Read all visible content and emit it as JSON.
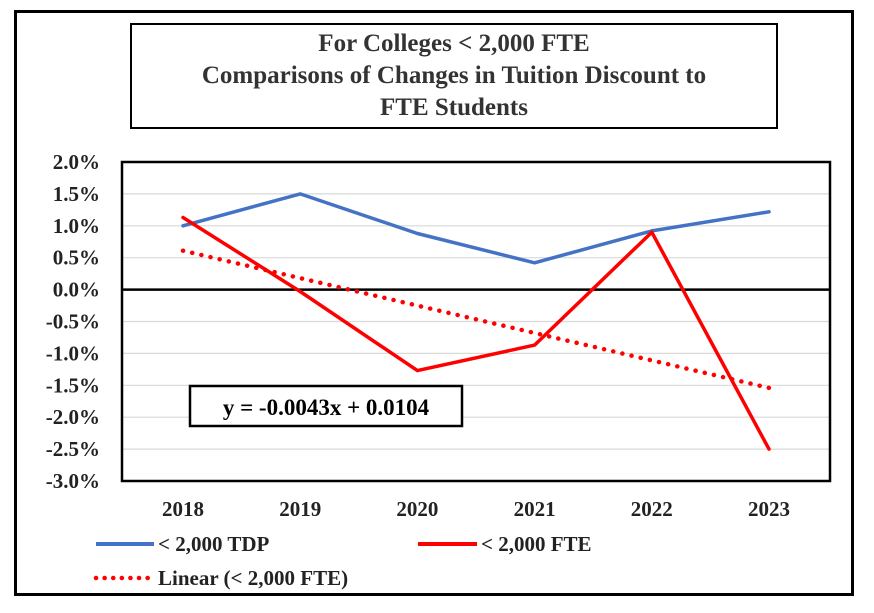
{
  "chart_data": {
    "type": "line",
    "title_lines": [
      "For Colleges < 2,000 FTE",
      "Comparisons of Changes in Tuition Discount to",
      "FTE Students"
    ],
    "categories": [
      "2018",
      "2019",
      "2020",
      "2021",
      "2022",
      "2023"
    ],
    "ylim": [
      -0.03,
      0.02
    ],
    "y_ticks": [
      0.02,
      0.015,
      0.01,
      0.005,
      0.0,
      -0.005,
      -0.01,
      -0.015,
      -0.02,
      -0.025,
      -0.03
    ],
    "y_tick_labels": [
      "2.0%",
      "1.5%",
      "1.0%",
      "0.5%",
      "0.0%",
      "-0.5%",
      "-1.0%",
      "-1.5%",
      "-2.0%",
      "-2.5%",
      "-3.0%"
    ],
    "grid": true,
    "series": [
      {
        "name": "< 2,000 TDP",
        "color": "#4472C4",
        "style": "solid",
        "values": [
          0.01,
          0.015,
          0.0088,
          0.0042,
          0.0092,
          0.0122
        ]
      },
      {
        "name": "< 2,000 FTE",
        "color": "#FF0000",
        "style": "solid",
        "values": [
          0.0113,
          -0.0003,
          -0.0127,
          -0.0087,
          0.009,
          -0.025
        ]
      },
      {
        "name": "Linear (< 2,000 FTE)",
        "color": "#FF0000",
        "style": "dotted",
        "trendline_of": "< 2,000 FTE",
        "values": [
          0.0061,
          0.0018,
          -0.0025,
          -0.0068,
          -0.0111,
          -0.0154
        ]
      }
    ],
    "annotation": "y = -0.0043x + 0.0104",
    "legend_position": "bottom"
  }
}
